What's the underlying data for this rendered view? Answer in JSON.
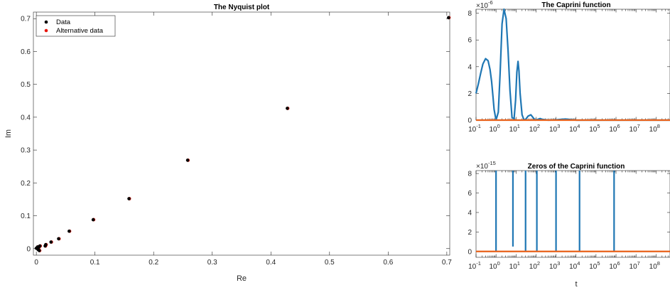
{
  "colors": {
    "data": "#000000",
    "alt": "#e8160c",
    "series_blue": "#1f77b4",
    "series_orange": "#e8611a",
    "axis": "#262626"
  },
  "chart_data": [
    {
      "type": "scatter",
      "title": "The Nyquist plot",
      "xlabel": "Re",
      "ylabel": "Im",
      "xlim": [
        -0.005,
        0.705
      ],
      "ylim": [
        -0.02,
        0.72
      ],
      "xticks": [
        "0",
        "0.1",
        "0.2",
        "0.3",
        "0.4",
        "0.5",
        "0.6",
        "0.7"
      ],
      "yticks": [
        "0",
        "0.1",
        "0.2",
        "0.3",
        "0.4",
        "0.5",
        "0.6",
        "0.7"
      ],
      "legend_placement": "top-left",
      "series": [
        {
          "name": "Data",
          "color": "#000000",
          "points": [
            [
              0.703,
              0.703
            ],
            [
              0.428,
              0.427
            ],
            [
              0.258,
              0.269
            ],
            [
              0.158,
              0.152
            ],
            [
              0.097,
              0.088
            ],
            [
              0.056,
              0.053
            ],
            [
              0.038,
              0.03
            ],
            [
              0.025,
              0.02
            ],
            [
              0.016,
              0.012
            ],
            [
              0.015,
              0.008
            ],
            [
              0.006,
              0.008
            ],
            [
              0.004,
              0.004
            ],
            [
              0.003,
              -0.003
            ],
            [
              0.005,
              -0.006
            ],
            [
              0.002,
              0.005
            ],
            [
              0.001,
              0.002
            ],
            [
              0.0,
              0.001
            ]
          ]
        },
        {
          "name": "Alternative data",
          "color": "#e8160c",
          "points": [
            [
              0.703,
              0.703
            ],
            [
              0.428,
              0.427
            ],
            [
              0.258,
              0.269
            ],
            [
              0.158,
              0.152
            ],
            [
              0.097,
              0.088
            ],
            [
              0.056,
              0.053
            ],
            [
              0.038,
              0.03
            ],
            [
              0.025,
              0.02
            ],
            [
              0.016,
              0.012
            ],
            [
              0.015,
              0.008
            ],
            [
              0.006,
              0.008
            ],
            [
              0.004,
              0.004
            ],
            [
              0.003,
              -0.003
            ],
            [
              0.005,
              -0.006
            ],
            [
              0.002,
              0.005
            ],
            [
              0.001,
              0.002
            ],
            [
              0.0,
              0.001
            ]
          ]
        }
      ]
    },
    {
      "type": "line",
      "title": "The Caprini function",
      "xscale": "log",
      "xlim": [
        0.1,
        500000000
      ],
      "ylim": [
        0,
        8.3
      ],
      "y_exponent": "×10",
      "y_exponent_power": "-6",
      "xticks": [
        "-1",
        "0",
        "1",
        "2",
        "3",
        "4",
        "5",
        "6",
        "7",
        "8"
      ],
      "yticks": [
        "0",
        "2",
        "4",
        "6",
        "8"
      ],
      "series": [
        {
          "color": "#1f77b4",
          "x": [
            0.1,
            0.13,
            0.17,
            0.22,
            0.3,
            0.4,
            0.5,
            0.6,
            0.7,
            0.8,
            1.0,
            1.3,
            1.6,
            2.0,
            2.5,
            3.2,
            4.0,
            5.0,
            6.3,
            8.0,
            9.5,
            11.0,
            12.6,
            14.0,
            16.0,
            20.0,
            25.0,
            30.0,
            40.0,
            55.0,
            70.0,
            90.0,
            120.0,
            160.0,
            200.0,
            400.0,
            800.0,
            1500.0,
            3000.0,
            5000.0,
            10000.0,
            50000.0,
            500000000.0
          ],
          "y": [
            2.0,
            2.7,
            3.5,
            4.2,
            4.6,
            4.45,
            3.8,
            2.9,
            1.8,
            0.8,
            0.0,
            0.6,
            3.5,
            7.2,
            8.3,
            7.6,
            5.2,
            2.2,
            0.2,
            0.1,
            1.5,
            3.6,
            4.4,
            3.7,
            2.0,
            0.4,
            0.02,
            0.05,
            0.3,
            0.4,
            0.2,
            0.0,
            0.05,
            0.12,
            0.06,
            0.0,
            0.01,
            0.05,
            0.08,
            0.04,
            0.0,
            0.0,
            0.0
          ]
        },
        {
          "color": "#e8611a",
          "x": [
            0.1,
            500000000.0
          ],
          "y": [
            0.0,
            0.0
          ]
        }
      ]
    },
    {
      "type": "line",
      "title": "Zeros of the Caprini function",
      "xlabel": "t",
      "xscale": "log",
      "xlim": [
        0.1,
        500000000
      ],
      "ylim": [
        -0.6,
        8.3
      ],
      "y_exponent": "×10",
      "y_exponent_power": "-15",
      "xticks": [
        "-1",
        "0",
        "1",
        "2",
        "3",
        "4",
        "5",
        "6",
        "7",
        "8"
      ],
      "yticks": [
        "0",
        "2",
        "4",
        "6",
        "8"
      ],
      "spikes": [
        {
          "x": 1.0,
          "top": 8.3,
          "bottom": 0.0
        },
        {
          "x": 7.0,
          "top": 8.3,
          "bottom": 0.5
        },
        {
          "x": 30.0,
          "top": 8.3,
          "bottom": 0.0
        },
        {
          "x": 110.0,
          "top": 8.3,
          "bottom": 0.0
        },
        {
          "x": 1000.0,
          "top": 8.3,
          "bottom": 0.0
        },
        {
          "x": 15000.0,
          "top": 8.3,
          "bottom": 0.0
        },
        {
          "x": 800000.0,
          "top": 8.3,
          "bottom": 0.0
        }
      ],
      "series": [
        {
          "color": "#e8611a",
          "x": [
            0.1,
            500000000.0
          ],
          "y": [
            0.0,
            0.0
          ]
        }
      ]
    }
  ]
}
